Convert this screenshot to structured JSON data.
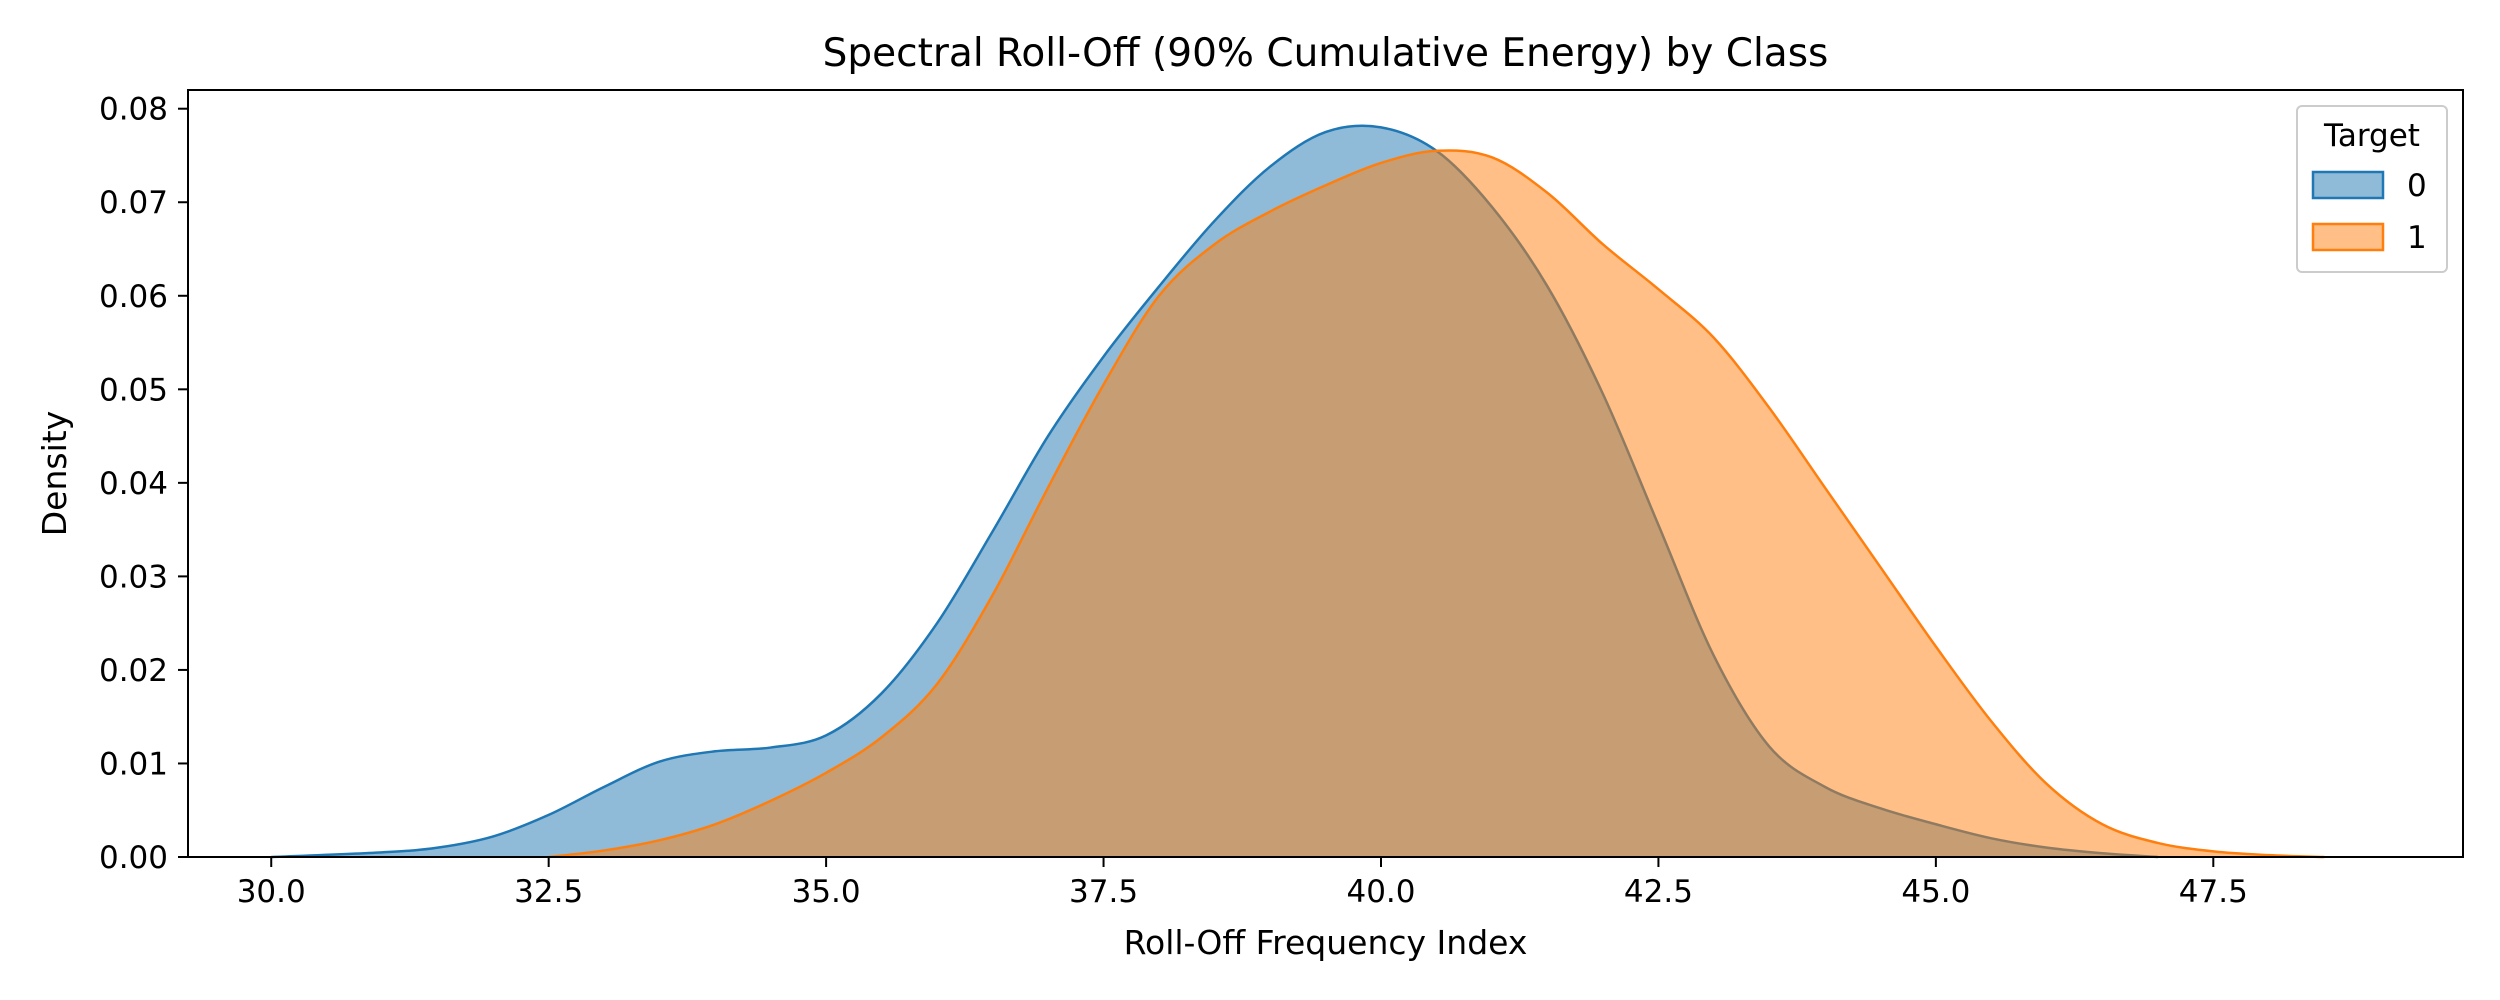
{
  "chart_data": {
    "type": "area",
    "title": "Spectral Roll-Off (90% Cumulative Energy) by Class",
    "xlabel": "Roll-Off Frequency Index",
    "ylabel": "Density",
    "xlim": [
      29.25,
      49.75
    ],
    "ylim": [
      0,
      0.082
    ],
    "x_ticks": [
      30.0,
      32.5,
      35.0,
      37.5,
      40.0,
      42.5,
      45.0,
      47.5
    ],
    "x_tick_labels": [
      "30.0",
      "32.5",
      "35.0",
      "37.5",
      "40.0",
      "42.5",
      "45.0",
      "47.5"
    ],
    "y_ticks": [
      0.0,
      0.01,
      0.02,
      0.03,
      0.04,
      0.05,
      0.06,
      0.07,
      0.08
    ],
    "y_tick_labels": [
      "0.00",
      "0.01",
      "0.02",
      "0.03",
      "0.04",
      "0.05",
      "0.06",
      "0.07",
      "0.08"
    ],
    "grid": false,
    "legend": {
      "title": "Target",
      "placement": "top-right"
    },
    "series": [
      {
        "name": "0",
        "color": "#1f77b4",
        "points": [
          [
            30.0,
            0.0
          ],
          [
            31.0,
            0.0005
          ],
          [
            31.5,
            0.001
          ],
          [
            32.0,
            0.0022
          ],
          [
            32.5,
            0.0045
          ],
          [
            33.0,
            0.0075
          ],
          [
            33.5,
            0.0102
          ],
          [
            34.0,
            0.0113
          ],
          [
            34.5,
            0.0117
          ],
          [
            35.0,
            0.013
          ],
          [
            35.5,
            0.0175
          ],
          [
            36.0,
            0.025
          ],
          [
            36.5,
            0.0348
          ],
          [
            37.0,
            0.045
          ],
          [
            37.5,
            0.0535
          ],
          [
            38.0,
            0.061
          ],
          [
            38.5,
            0.068
          ],
          [
            39.0,
            0.0738
          ],
          [
            39.5,
            0.0775
          ],
          [
            40.0,
            0.078
          ],
          [
            40.5,
            0.0755
          ],
          [
            41.0,
            0.0695
          ],
          [
            41.5,
            0.061
          ],
          [
            42.0,
            0.0495
          ],
          [
            42.5,
            0.0355
          ],
          [
            43.0,
            0.0215
          ],
          [
            43.5,
            0.0118
          ],
          [
            44.0,
            0.0075
          ],
          [
            44.5,
            0.0052
          ],
          [
            45.0,
            0.0035
          ],
          [
            45.5,
            0.002
          ],
          [
            46.0,
            0.001
          ],
          [
            46.5,
            0.0004
          ],
          [
            47.0,
            0.0
          ]
        ]
      },
      {
        "name": "1",
        "color": "#ff7f0e",
        "points": [
          [
            32.5,
            0.0
          ],
          [
            33.0,
            0.0007
          ],
          [
            33.5,
            0.0018
          ],
          [
            34.0,
            0.0035
          ],
          [
            34.5,
            0.006
          ],
          [
            35.0,
            0.009
          ],
          [
            35.5,
            0.0128
          ],
          [
            36.0,
            0.0185
          ],
          [
            36.5,
            0.028
          ],
          [
            37.0,
            0.0395
          ],
          [
            37.5,
            0.0505
          ],
          [
            38.0,
            0.06
          ],
          [
            38.5,
            0.0655
          ],
          [
            39.0,
            0.069
          ],
          [
            39.5,
            0.0718
          ],
          [
            40.0,
            0.0742
          ],
          [
            40.5,
            0.0755
          ],
          [
            41.0,
            0.0748
          ],
          [
            41.5,
            0.071
          ],
          [
            42.0,
            0.0655
          ],
          [
            42.5,
            0.0607
          ],
          [
            43.0,
            0.0555
          ],
          [
            43.5,
            0.048
          ],
          [
            44.0,
            0.0395
          ],
          [
            44.5,
            0.031
          ],
          [
            45.0,
            0.0225
          ],
          [
            45.5,
            0.0145
          ],
          [
            46.0,
            0.0078
          ],
          [
            46.5,
            0.0035
          ],
          [
            47.0,
            0.0015
          ],
          [
            47.5,
            0.0006
          ],
          [
            48.0,
            0.0002
          ],
          [
            48.5,
            0.0
          ]
        ]
      }
    ]
  }
}
